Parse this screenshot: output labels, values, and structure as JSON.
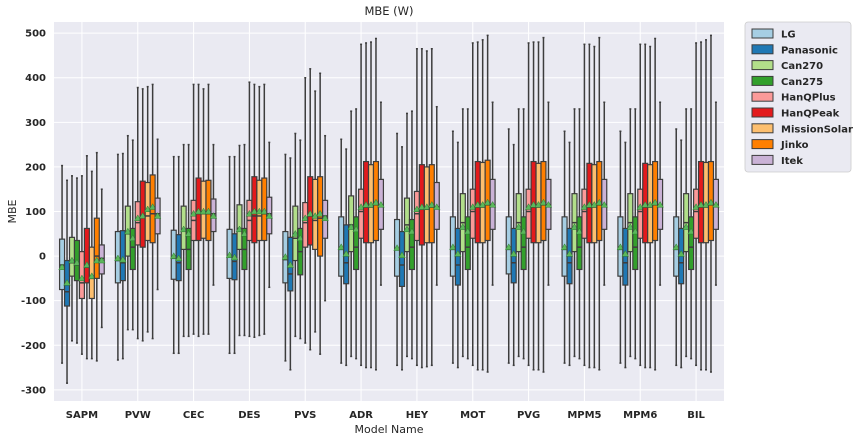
{
  "chart_data": {
    "type": "box",
    "title": "MBE (W)",
    "xlabel": "Model Name",
    "ylabel": "MBE",
    "ylim": [
      -325,
      525
    ],
    "yticks": [
      -300,
      -200,
      -100,
      0,
      100,
      200,
      300,
      400,
      500
    ],
    "grid": true,
    "legend_position": "outside-top-right",
    "categories": [
      "SAPM",
      "PVW",
      "CEC",
      "DES",
      "PVS",
      "ADR",
      "HEY",
      "MOT",
      "PVG",
      "MPM5",
      "MPM6",
      "BIL"
    ],
    "series": [
      {
        "name": "LG",
        "color": "#a6cee3",
        "boxes": [
          {
            "wlo": -240,
            "q1": -75,
            "med": -20,
            "q3": 38,
            "whi": 203,
            "mean": -25
          },
          {
            "wlo": -233,
            "q1": -60,
            "med": -10,
            "q3": 55,
            "whi": 228,
            "mean": -5
          },
          {
            "wlo": -218,
            "q1": -52,
            "med": -5,
            "q3": 58,
            "whi": 223,
            "mean": 0
          },
          {
            "wlo": -218,
            "q1": -50,
            "med": -2,
            "q3": 60,
            "whi": 223,
            "mean": 2
          },
          {
            "wlo": -235,
            "q1": -60,
            "med": -8,
            "q3": 55,
            "whi": 228,
            "mean": -2
          },
          {
            "wlo": -240,
            "q1": -45,
            "med": 15,
            "q3": 88,
            "whi": 262,
            "mean": 20
          },
          {
            "wlo": -245,
            "q1": -45,
            "med": 15,
            "q3": 82,
            "whi": 275,
            "mean": 18
          },
          {
            "wlo": -240,
            "q1": -45,
            "med": 15,
            "q3": 88,
            "whi": 280,
            "mean": 20
          },
          {
            "wlo": -240,
            "q1": -40,
            "med": 15,
            "q3": 88,
            "whi": 285,
            "mean": 20
          },
          {
            "wlo": -240,
            "q1": -45,
            "med": 15,
            "q3": 88,
            "whi": 280,
            "mean": 20
          },
          {
            "wlo": -240,
            "q1": -45,
            "med": 15,
            "q3": 88,
            "whi": 280,
            "mean": 20
          },
          {
            "wlo": -245,
            "q1": -45,
            "med": 15,
            "q3": 88,
            "whi": 285,
            "mean": 20
          }
        ]
      },
      {
        "name": "Panasonic",
        "color": "#1f78b4",
        "boxes": [
          {
            "wlo": -285,
            "q1": -112,
            "med": -80,
            "q3": -10,
            "whi": 170,
            "mean": -60
          },
          {
            "wlo": -230,
            "q1": -55,
            "med": -15,
            "q3": 57,
            "whi": 230,
            "mean": -8
          },
          {
            "wlo": -218,
            "q1": -55,
            "med": -15,
            "q3": 48,
            "whi": 223,
            "mean": -5
          },
          {
            "wlo": -218,
            "q1": -53,
            "med": -12,
            "q3": 50,
            "whi": 223,
            "mean": -3
          },
          {
            "wlo": -255,
            "q1": -78,
            "med": -40,
            "q3": 42,
            "whi": 220,
            "mean": -20
          },
          {
            "wlo": -245,
            "q1": -62,
            "med": -15,
            "q3": 70,
            "whi": 240,
            "mean": 5
          },
          {
            "wlo": -255,
            "q1": -68,
            "med": -20,
            "q3": 55,
            "whi": 245,
            "mean": 2
          },
          {
            "wlo": -250,
            "q1": -65,
            "med": -20,
            "q3": 62,
            "whi": 255,
            "mean": 5
          },
          {
            "wlo": -245,
            "q1": -60,
            "med": -15,
            "q3": 62,
            "whi": 250,
            "mean": 5
          },
          {
            "wlo": -245,
            "q1": -62,
            "med": -15,
            "q3": 62,
            "whi": 255,
            "mean": 5
          },
          {
            "wlo": -250,
            "q1": -65,
            "med": -15,
            "q3": 62,
            "whi": 255,
            "mean": 5
          },
          {
            "wlo": -250,
            "q1": -62,
            "med": -15,
            "q3": 62,
            "whi": 260,
            "mean": 5
          }
        ]
      },
      {
        "name": "Can270",
        "color": "#b2df8a",
        "boxes": [
          {
            "wlo": -190,
            "q1": -45,
            "med": -15,
            "q3": 42,
            "whi": 180,
            "mean": -10
          },
          {
            "wlo": -165,
            "q1": 0,
            "med": 50,
            "q3": 112,
            "whi": 270,
            "mean": 55
          },
          {
            "wlo": -180,
            "q1": 15,
            "med": 60,
            "q3": 112,
            "whi": 250,
            "mean": 60
          },
          {
            "wlo": -178,
            "q1": 15,
            "med": 62,
            "q3": 115,
            "whi": 248,
            "mean": 60
          },
          {
            "wlo": -180,
            "q1": -10,
            "med": 40,
            "q3": 112,
            "whi": 275,
            "mean": 50
          },
          {
            "wlo": -225,
            "q1": 10,
            "med": 70,
            "q3": 135,
            "whi": 325,
            "mean": 65
          },
          {
            "wlo": -225,
            "q1": 10,
            "med": 70,
            "q3": 130,
            "whi": 320,
            "mean": 60
          },
          {
            "wlo": -225,
            "q1": 10,
            "med": 75,
            "q3": 140,
            "whi": 330,
            "mean": 65
          },
          {
            "wlo": -225,
            "q1": 10,
            "med": 75,
            "q3": 140,
            "whi": 330,
            "mean": 65
          },
          {
            "wlo": -225,
            "q1": 10,
            "med": 75,
            "q3": 140,
            "whi": 330,
            "mean": 65
          },
          {
            "wlo": -225,
            "q1": 10,
            "med": 75,
            "q3": 140,
            "whi": 330,
            "mean": 65
          },
          {
            "wlo": -225,
            "q1": 10,
            "med": 75,
            "q3": 140,
            "whi": 330,
            "mean": 65
          }
        ]
      },
      {
        "name": "Can275",
        "color": "#33a02c",
        "boxes": [
          {
            "wlo": -195,
            "q1": -55,
            "med": -20,
            "q3": 35,
            "whi": 175,
            "mean": -15
          },
          {
            "wlo": -165,
            "q1": -30,
            "med": 20,
            "q3": 62,
            "whi": 260,
            "mean": 40
          },
          {
            "wlo": -180,
            "q1": -30,
            "med": 15,
            "q3": 62,
            "whi": 250,
            "mean": 50
          },
          {
            "wlo": -178,
            "q1": -30,
            "med": 15,
            "q3": 62,
            "whi": 250,
            "mean": 50
          },
          {
            "wlo": -185,
            "q1": -42,
            "med": 10,
            "q3": 62,
            "whi": 260,
            "mean": 40
          },
          {
            "wlo": -230,
            "q1": -30,
            "med": 20,
            "q3": 88,
            "whi": 330,
            "mean": 60
          },
          {
            "wlo": -230,
            "q1": -30,
            "med": 20,
            "q3": 82,
            "whi": 325,
            "mean": 55
          },
          {
            "wlo": -230,
            "q1": -30,
            "med": 20,
            "q3": 88,
            "whi": 330,
            "mean": 55
          },
          {
            "wlo": -230,
            "q1": -30,
            "med": 20,
            "q3": 88,
            "whi": 330,
            "mean": 55
          },
          {
            "wlo": -230,
            "q1": -30,
            "med": 20,
            "q3": 88,
            "whi": 330,
            "mean": 55
          },
          {
            "wlo": -230,
            "q1": -30,
            "med": 20,
            "q3": 88,
            "whi": 330,
            "mean": 55
          },
          {
            "wlo": -230,
            "q1": -30,
            "med": 20,
            "q3": 88,
            "whi": 330,
            "mean": 55
          }
        ]
      },
      {
        "name": "HanQPlus",
        "color": "#fb9a99",
        "boxes": [
          {
            "wlo": -220,
            "q1": -95,
            "med": -60,
            "q3": 10,
            "whi": 180,
            "mean": -50
          },
          {
            "wlo": -185,
            "q1": 25,
            "med": 75,
            "q3": 122,
            "whi": 378,
            "mean": 85
          },
          {
            "wlo": -175,
            "q1": 35,
            "med": 80,
            "q3": 125,
            "whi": 385,
            "mean": 95
          },
          {
            "wlo": -180,
            "q1": 35,
            "med": 80,
            "q3": 125,
            "whi": 390,
            "mean": 95
          },
          {
            "wlo": -195,
            "q1": 20,
            "med": 75,
            "q3": 120,
            "whi": 400,
            "mean": 85
          },
          {
            "wlo": -245,
            "q1": 40,
            "med": 100,
            "q3": 150,
            "whi": 475,
            "mean": 110
          },
          {
            "wlo": -245,
            "q1": 35,
            "med": 95,
            "q3": 145,
            "whi": 465,
            "mean": 105
          },
          {
            "wlo": -245,
            "q1": 40,
            "med": 100,
            "q3": 150,
            "whi": 478,
            "mean": 110
          },
          {
            "wlo": -245,
            "q1": 40,
            "med": 100,
            "q3": 150,
            "whi": 478,
            "mean": 110
          },
          {
            "wlo": -245,
            "q1": 40,
            "med": 100,
            "q3": 150,
            "whi": 475,
            "mean": 110
          },
          {
            "wlo": -245,
            "q1": 40,
            "med": 100,
            "q3": 150,
            "whi": 475,
            "mean": 110
          },
          {
            "wlo": -245,
            "q1": 40,
            "med": 100,
            "q3": 150,
            "whi": 478,
            "mean": 110
          }
        ]
      },
      {
        "name": "HanQPeak",
        "color": "#e31a1c",
        "boxes": [
          {
            "wlo": -230,
            "q1": -60,
            "med": -25,
            "q3": 62,
            "whi": 225,
            "mean": -20
          },
          {
            "wlo": -190,
            "q1": 20,
            "med": 90,
            "q3": 168,
            "whi": 375,
            "mean": 90
          },
          {
            "wlo": -180,
            "q1": 35,
            "med": 95,
            "q3": 175,
            "whi": 385,
            "mean": 100
          },
          {
            "wlo": -182,
            "q1": 30,
            "med": 90,
            "q3": 178,
            "whi": 385,
            "mean": 100
          },
          {
            "wlo": -210,
            "q1": 25,
            "med": 90,
            "q3": 178,
            "whi": 420,
            "mean": 95
          },
          {
            "wlo": -250,
            "q1": 30,
            "med": 110,
            "q3": 212,
            "whi": 478,
            "mean": 115
          },
          {
            "wlo": -250,
            "q1": 25,
            "med": 105,
            "q3": 205,
            "whi": 465,
            "mean": 110
          },
          {
            "wlo": -255,
            "q1": 30,
            "med": 110,
            "q3": 212,
            "whi": 480,
            "mean": 115
          },
          {
            "wlo": -255,
            "q1": 30,
            "med": 110,
            "q3": 212,
            "whi": 480,
            "mean": 115
          },
          {
            "wlo": -250,
            "q1": 30,
            "med": 110,
            "q3": 208,
            "whi": 475,
            "mean": 115
          },
          {
            "wlo": -250,
            "q1": 30,
            "med": 110,
            "q3": 208,
            "whi": 475,
            "mean": 115
          },
          {
            "wlo": -255,
            "q1": 30,
            "med": 110,
            "q3": 212,
            "whi": 480,
            "mean": 115
          }
        ]
      },
      {
        "name": "MissionSolar",
        "color": "#fdbf6f",
        "boxes": [
          {
            "wlo": -230,
            "q1": -95,
            "med": -50,
            "q3": 20,
            "whi": 190,
            "mean": -45
          },
          {
            "wlo": -170,
            "q1": 35,
            "med": 90,
            "q3": 165,
            "whi": 380,
            "mean": 105
          },
          {
            "wlo": -175,
            "q1": 40,
            "med": 95,
            "q3": 168,
            "whi": 375,
            "mean": 100
          },
          {
            "wlo": -178,
            "q1": 35,
            "med": 90,
            "q3": 170,
            "whi": 380,
            "mean": 100
          },
          {
            "wlo": -170,
            "q1": 15,
            "med": 80,
            "q3": 172,
            "whi": 370,
            "mean": 90
          },
          {
            "wlo": -250,
            "q1": 30,
            "med": 110,
            "q3": 205,
            "whi": 480,
            "mean": 115
          },
          {
            "wlo": -248,
            "q1": 30,
            "med": 105,
            "q3": 200,
            "whi": 460,
            "mean": 110
          },
          {
            "wlo": -255,
            "q1": 30,
            "med": 110,
            "q3": 210,
            "whi": 485,
            "mean": 115
          },
          {
            "wlo": -255,
            "q1": 30,
            "med": 110,
            "q3": 208,
            "whi": 480,
            "mean": 115
          },
          {
            "wlo": -250,
            "q1": 30,
            "med": 110,
            "q3": 205,
            "whi": 470,
            "mean": 115
          },
          {
            "wlo": -250,
            "q1": 30,
            "med": 110,
            "q3": 205,
            "whi": 470,
            "mean": 115
          },
          {
            "wlo": -255,
            "q1": 30,
            "med": 110,
            "q3": 210,
            "whi": 485,
            "mean": 115
          }
        ]
      },
      {
        "name": "Jinko",
        "color": "#ff7f00",
        "boxes": [
          {
            "wlo": -235,
            "q1": -50,
            "med": 0,
            "q3": 85,
            "whi": 232,
            "mean": -10
          },
          {
            "wlo": -185,
            "q1": 30,
            "med": 95,
            "q3": 182,
            "whi": 385,
            "mean": 110
          },
          {
            "wlo": -175,
            "q1": 35,
            "med": 95,
            "q3": 170,
            "whi": 385,
            "mean": 100
          },
          {
            "wlo": -175,
            "q1": 35,
            "med": 95,
            "q3": 175,
            "whi": 385,
            "mean": 100
          },
          {
            "wlo": -220,
            "q1": 0,
            "med": 85,
            "q3": 178,
            "whi": 410,
            "mean": 95
          },
          {
            "wlo": -255,
            "q1": 35,
            "med": 115,
            "q3": 212,
            "whi": 488,
            "mean": 120
          },
          {
            "wlo": -245,
            "q1": 30,
            "med": 110,
            "q3": 205,
            "whi": 465,
            "mean": 115
          },
          {
            "wlo": -260,
            "q1": 35,
            "med": 115,
            "q3": 215,
            "whi": 495,
            "mean": 120
          },
          {
            "wlo": -260,
            "q1": 35,
            "med": 115,
            "q3": 212,
            "whi": 490,
            "mean": 120
          },
          {
            "wlo": -255,
            "q1": 35,
            "med": 115,
            "q3": 212,
            "whi": 490,
            "mean": 120
          },
          {
            "wlo": -255,
            "q1": 35,
            "med": 115,
            "q3": 212,
            "whi": 488,
            "mean": 120
          },
          {
            "wlo": -260,
            "q1": 35,
            "med": 115,
            "q3": 212,
            "whi": 495,
            "mean": 120
          }
        ]
      },
      {
        "name": "Itek",
        "color": "#cab2d6",
        "boxes": [
          {
            "wlo": -160,
            "q1": -40,
            "med": -5,
            "q3": 25,
            "whi": 150,
            "mean": -10
          },
          {
            "wlo": -75,
            "q1": 50,
            "med": 95,
            "q3": 130,
            "whi": 262,
            "mean": 90
          },
          {
            "wlo": -65,
            "q1": 55,
            "med": 95,
            "q3": 128,
            "whi": 250,
            "mean": 90
          },
          {
            "wlo": -70,
            "q1": 50,
            "med": 95,
            "q3": 132,
            "whi": 255,
            "mean": 90
          },
          {
            "wlo": -100,
            "q1": 40,
            "med": 90,
            "q3": 125,
            "whi": 270,
            "mean": 85
          },
          {
            "wlo": -65,
            "q1": 60,
            "med": 115,
            "q3": 172,
            "whi": 345,
            "mean": 115
          },
          {
            "wlo": -65,
            "q1": 60,
            "med": 110,
            "q3": 165,
            "whi": 335,
            "mean": 110
          },
          {
            "wlo": -65,
            "q1": 60,
            "med": 115,
            "q3": 172,
            "whi": 345,
            "mean": 115
          },
          {
            "wlo": -65,
            "q1": 60,
            "med": 115,
            "q3": 172,
            "whi": 345,
            "mean": 115
          },
          {
            "wlo": -65,
            "q1": 60,
            "med": 115,
            "q3": 172,
            "whi": 345,
            "mean": 115
          },
          {
            "wlo": -65,
            "q1": 60,
            "med": 115,
            "q3": 172,
            "whi": 345,
            "mean": 115
          },
          {
            "wlo": -65,
            "q1": 60,
            "med": 115,
            "q3": 172,
            "whi": 345,
            "mean": 115
          }
        ]
      }
    ]
  }
}
